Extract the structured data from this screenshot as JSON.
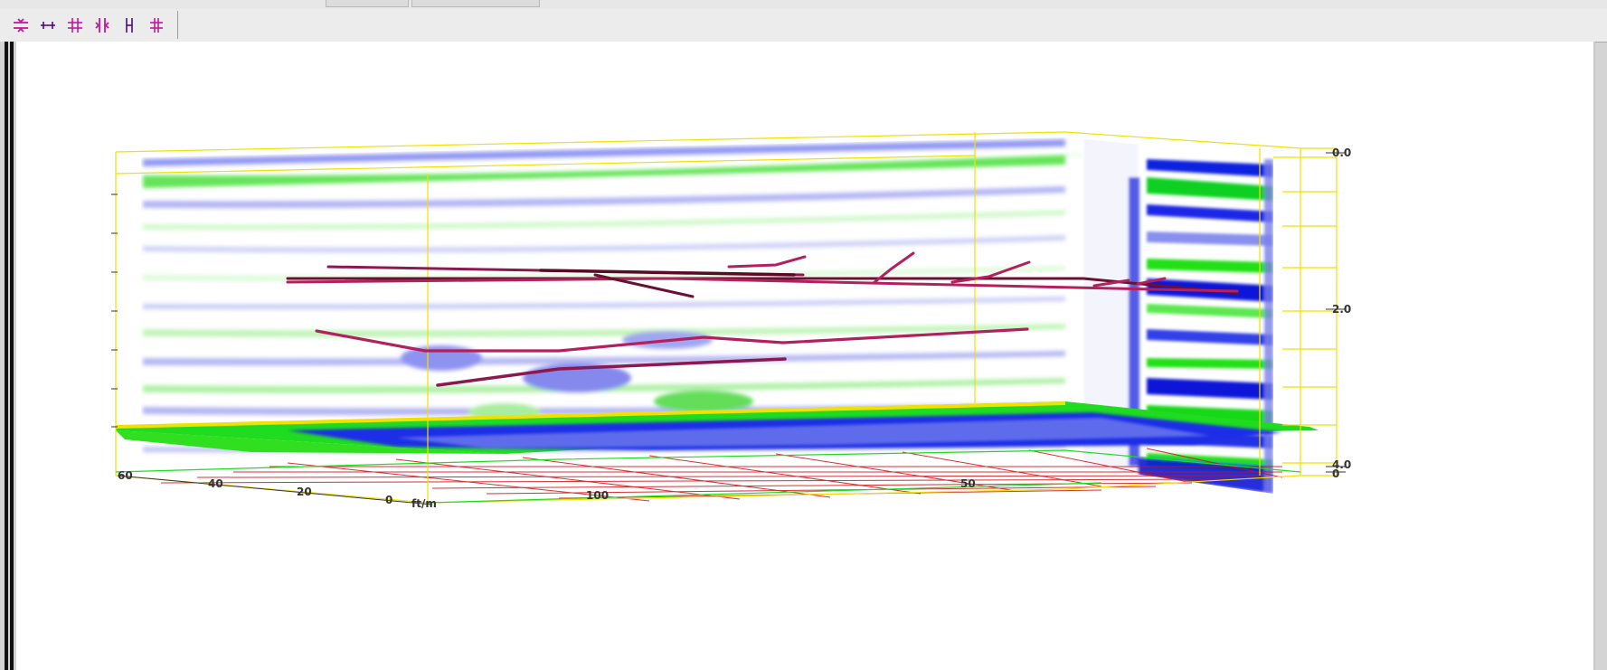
{
  "toolbar": {
    "buttons": [
      {
        "id": "tool-1",
        "icon": "split-horizontal-icon"
      },
      {
        "id": "tool-2",
        "icon": "horizontal-bar-icon"
      },
      {
        "id": "tool-3",
        "icon": "grid-hash-icon"
      },
      {
        "id": "tool-4",
        "icon": "split-vertical-icon"
      },
      {
        "id": "tool-5",
        "icon": "vertical-bracket-icon"
      },
      {
        "id": "tool-6",
        "icon": "vertical-hash-icon"
      }
    ],
    "icon_color": "#c2189a"
  },
  "viewer": {
    "axis_left_labels": [
      "60",
      "40",
      "20",
      "0"
    ],
    "axis_left_unit": "ft/m",
    "axis_front_labels": [
      "100",
      "50"
    ],
    "axis_right_labels": [
      "0.0",
      "2.0",
      "4.0",
      "0"
    ],
    "colors": {
      "positive": "#0018e6",
      "negative": "#22e614",
      "interpretation": "#b3205e",
      "frame": "#f2e000",
      "base_grid": "#cc1010"
    }
  }
}
